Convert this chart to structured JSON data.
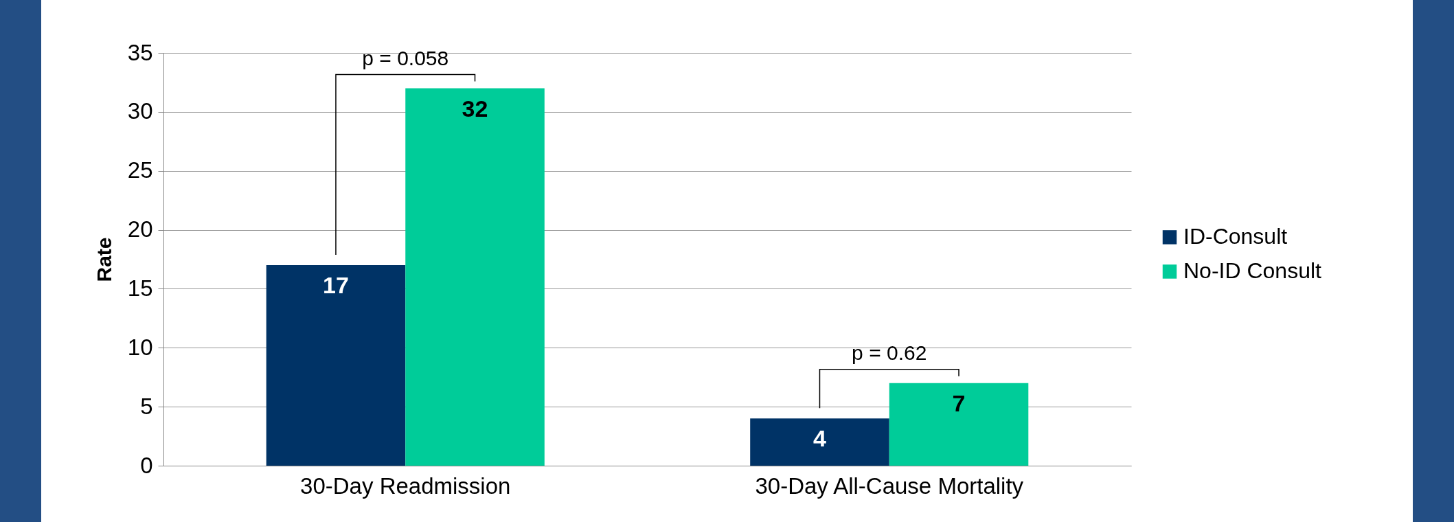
{
  "chart_data": {
    "type": "bar",
    "categories": [
      "30-Day Readmission",
      "30-Day All-Cause Mortality"
    ],
    "series": [
      {
        "name": "ID-Consult",
        "color": "#003366",
        "values": [
          17,
          4
        ]
      },
      {
        "name": "No-ID Consult",
        "color": "#00cc99",
        "values": [
          32,
          7
        ]
      }
    ],
    "ylabel": "Rate",
    "ylim": [
      0,
      35
    ],
    "yticks": [
      0,
      5,
      10,
      15,
      20,
      25,
      30,
      35
    ],
    "grid": "y",
    "legend": "right",
    "data_labels": true,
    "annotations": [
      "p = 0.058",
      "p = 0.62"
    ]
  }
}
